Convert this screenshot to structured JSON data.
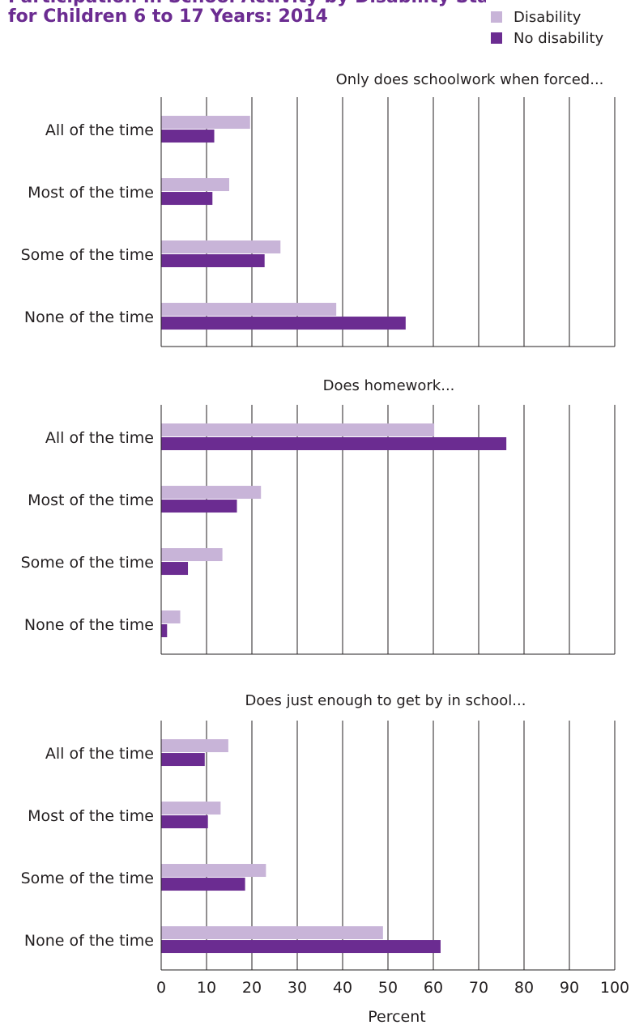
{
  "title": {
    "line1": "Participation in School Activity by Disability Status",
    "line2": "for Children 6 to 17 Years: 2014"
  },
  "colors": {
    "disability": "#c8b4d8",
    "no_disability": "#6b2c91",
    "title": "#6b2c91",
    "axis": "#231f20"
  },
  "legend": {
    "items": [
      {
        "label": "Disability",
        "color": "#c8b4d8"
      },
      {
        "label": "No disability",
        "color": "#6b2c91"
      }
    ]
  },
  "chart_data": {
    "type": "bar",
    "orientation": "horizontal",
    "xlabel": "Percent",
    "xlim": [
      0,
      100
    ],
    "xticks": [
      0,
      10,
      20,
      30,
      40,
      50,
      60,
      70,
      80,
      90,
      100
    ],
    "grid": true,
    "legend_position": "top-right",
    "series_names": [
      "Disability",
      "No disability"
    ],
    "panels": [
      {
        "title": "Only does schoolwork when forced...",
        "categories": [
          "All of the time",
          "Most of the time",
          "Some of the time",
          "None of the time"
        ],
        "series": [
          {
            "name": "Disability",
            "values": [
              19.6,
              15.0,
              26.3,
              38.6
            ]
          },
          {
            "name": "No disability",
            "values": [
              11.7,
              11.3,
              22.8,
              53.9
            ]
          }
        ]
      },
      {
        "title": "Does homework...",
        "categories": [
          "All of the time",
          "Most of the time",
          "Some of the time",
          "None of the time"
        ],
        "series": [
          {
            "name": "Disability",
            "values": [
              60.2,
              22.0,
              13.5,
              4.2
            ]
          },
          {
            "name": "No disability",
            "values": [
              76.1,
              16.7,
              5.9,
              1.3
            ]
          }
        ]
      },
      {
        "title": "Does just enough to get by in school...",
        "categories": [
          "All of the time",
          "Most of the time",
          "Some of the time",
          "None of the time"
        ],
        "series": [
          {
            "name": "Disability",
            "values": [
              14.8,
              13.1,
              23.1,
              48.9
            ]
          },
          {
            "name": "No disability",
            "values": [
              9.6,
              10.3,
              18.5,
              61.6
            ]
          }
        ]
      }
    ]
  }
}
